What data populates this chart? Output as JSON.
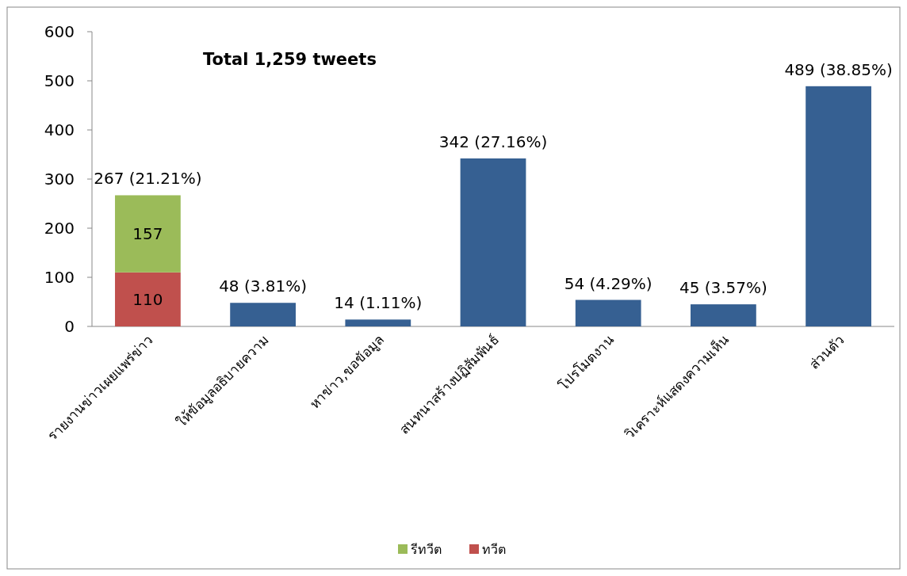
{
  "chart_data": {
    "type": "bar",
    "stacked": true,
    "categories": [
      "รายงานข่าวเผยแพร่ข่าว",
      "ให้ข้อมูลอธิบายความ",
      "หาข่าว,ขอข้อมูล",
      "สนทนาสร้างปฏิสัมพันธ์",
      "โปรโมตงาน",
      "วิเคราะห์แสดงความเห็น",
      "ส่วนตัว"
    ],
    "series": [
      {
        "name": "ทวีต",
        "color": "#c0504d",
        "values": [
          110,
          null,
          null,
          null,
          null,
          null,
          null
        ],
        "value_labels": [
          "110",
          null,
          null,
          null,
          null,
          null,
          null
        ]
      },
      {
        "name": "รีทวีต",
        "color": "#9bbb59",
        "values": [
          157,
          null,
          null,
          null,
          null,
          null,
          null
        ],
        "value_labels": [
          "157",
          null,
          null,
          null,
          null,
          null,
          null
        ]
      },
      {
        "color": "#366092",
        "values": [
          null,
          48,
          14,
          342,
          54,
          45,
          489
        ]
      }
    ],
    "totals": [
      "267 (21.21%)",
      "48 (3.81%)",
      "14 (1.11%)",
      "342 (27.16%)",
      "54 (4.29%)",
      "45 (3.57%)",
      "489 (38.85%)"
    ],
    "annotations": [
      "Total 1,259 tweets"
    ],
    "ylim": [
      0,
      600
    ],
    "yticks": [
      0,
      100,
      200,
      300,
      400,
      500,
      600
    ],
    "legend": "bottom"
  }
}
